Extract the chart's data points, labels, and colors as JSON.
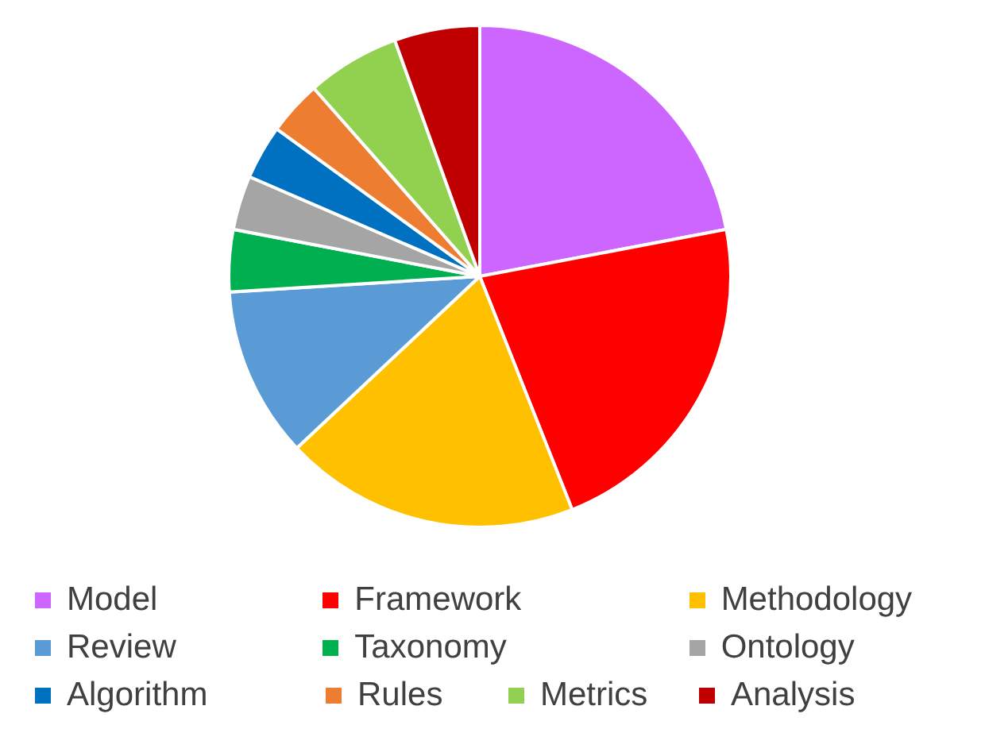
{
  "chart_data": {
    "type": "pie",
    "categories": [
      "Model",
      "Framework",
      "Methodology",
      "Review",
      "Taxonomy",
      "Ontology",
      "Algorithm",
      "Rules",
      "Metrics",
      "Analysis"
    ],
    "values": [
      22,
      22,
      19,
      11,
      4,
      3.5,
      3.5,
      3.5,
      6,
      5.5
    ],
    "colors": [
      "#cc66ff",
      "#ff0000",
      "#ffc000",
      "#5b9bd5",
      "#00b050",
      "#a5a5a5",
      "#0070c0",
      "#ed7d31",
      "#92d050",
      "#c00000"
    ],
    "legend": "bottom"
  }
}
